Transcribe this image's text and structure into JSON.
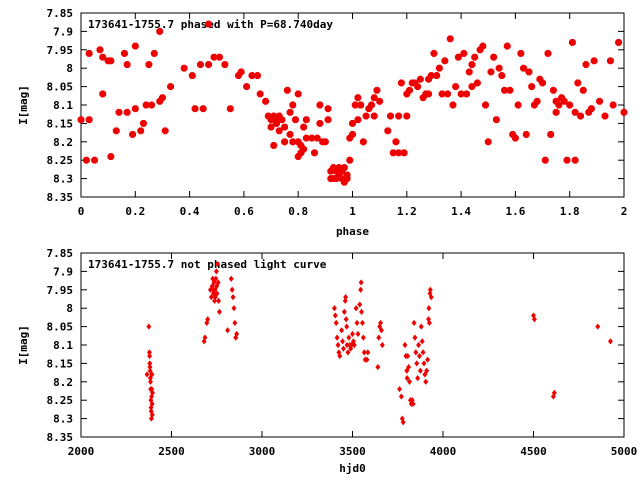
{
  "chart_data": [
    {
      "type": "scatter",
      "title": "173641-1755.7 phased with P=68.740day",
      "xlabel": "phase",
      "ylabel": "I[mag]",
      "xlim": [
        0,
        2
      ],
      "ylim": [
        8.35,
        7.85
      ],
      "y_inverted": true,
      "xticks": [
        "0",
        "0.2",
        "0.4",
        "0.6",
        "0.8",
        "1",
        "1.2",
        "1.4",
        "1.6",
        "1.8",
        "2"
      ],
      "yticks": [
        "7.85",
        "7.9",
        "7.95",
        "8",
        "8.05",
        "8.1",
        "8.15",
        "8.2",
        "8.25",
        "8.3",
        "8.35"
      ],
      "marker": "star",
      "color": "#ee0000",
      "points": [
        [
          0.0,
          8.14
        ],
        [
          0.02,
          8.25
        ],
        [
          0.03,
          8.14
        ],
        [
          0.03,
          7.96
        ],
        [
          0.05,
          8.25
        ],
        [
          0.07,
          7.95
        ],
        [
          0.08,
          8.07
        ],
        [
          0.08,
          7.97
        ],
        [
          0.1,
          7.98
        ],
        [
          0.11,
          8.24
        ],
        [
          0.11,
          7.98
        ],
        [
          0.13,
          8.17
        ],
        [
          0.14,
          8.12
        ],
        [
          0.16,
          7.96
        ],
        [
          0.17,
          8.12
        ],
        [
          0.17,
          7.99
        ],
        [
          0.19,
          8.18
        ],
        [
          0.2,
          8.11
        ],
        [
          0.2,
          7.94
        ],
        [
          0.22,
          8.17
        ],
        [
          0.23,
          8.15
        ],
        [
          0.24,
          8.1
        ],
        [
          0.25,
          7.99
        ],
        [
          0.26,
          8.1
        ],
        [
          0.27,
          7.96
        ],
        [
          0.29,
          8.09
        ],
        [
          0.29,
          7.9
        ],
        [
          0.3,
          8.08
        ],
        [
          0.31,
          8.17
        ],
        [
          0.33,
          8.05
        ],
        [
          0.38,
          8.0
        ],
        [
          0.41,
          8.02
        ],
        [
          0.42,
          8.11
        ],
        [
          0.44,
          7.99
        ],
        [
          0.45,
          8.11
        ],
        [
          0.47,
          7.88
        ],
        [
          0.47,
          7.99
        ],
        [
          0.49,
          7.97
        ],
        [
          0.51,
          7.97
        ],
        [
          0.53,
          7.99
        ],
        [
          0.55,
          8.11
        ],
        [
          0.58,
          8.02
        ],
        [
          0.59,
          8.01
        ],
        [
          0.61,
          8.05
        ],
        [
          0.63,
          8.02
        ],
        [
          0.65,
          8.02
        ],
        [
          0.66,
          8.07
        ],
        [
          0.68,
          8.09
        ],
        [
          0.69,
          8.13
        ],
        [
          0.7,
          8.14
        ],
        [
          0.7,
          8.16
        ],
        [
          0.71,
          8.13
        ],
        [
          0.71,
          8.21
        ],
        [
          0.72,
          8.14
        ],
        [
          0.72,
          8.15
        ],
        [
          0.73,
          8.13
        ],
        [
          0.73,
          8.17
        ],
        [
          0.74,
          8.14
        ],
        [
          0.75,
          8.2
        ],
        [
          0.75,
          8.16
        ],
        [
          0.76,
          8.06
        ],
        [
          0.77,
          8.12
        ],
        [
          0.77,
          8.18
        ],
        [
          0.78,
          8.1
        ],
        [
          0.78,
          8.2
        ],
        [
          0.79,
          8.14
        ],
        [
          0.8,
          8.2
        ],
        [
          0.8,
          8.24
        ],
        [
          0.8,
          8.07
        ],
        [
          0.81,
          8.21
        ],
        [
          0.81,
          8.23
        ],
        [
          0.82,
          8.16
        ],
        [
          0.82,
          8.22
        ],
        [
          0.83,
          8.19
        ],
        [
          0.83,
          8.14
        ],
        [
          0.85,
          8.19
        ],
        [
          0.86,
          8.23
        ],
        [
          0.87,
          8.19
        ],
        [
          0.88,
          8.15
        ],
        [
          0.88,
          8.1
        ],
        [
          0.89,
          8.2
        ],
        [
          0.9,
          8.2
        ],
        [
          0.91,
          8.14
        ],
        [
          0.91,
          8.11
        ],
        [
          0.92,
          8.28
        ],
        [
          0.92,
          8.3
        ],
        [
          0.93,
          8.3
        ],
        [
          0.93,
          8.27
        ],
        [
          0.94,
          8.3
        ],
        [
          0.94,
          8.28
        ],
        [
          0.95,
          8.29
        ],
        [
          0.95,
          8.27
        ],
        [
          0.96,
          8.3
        ],
        [
          0.96,
          8.28
        ],
        [
          0.97,
          8.27
        ],
        [
          0.97,
          8.31
        ],
        [
          0.98,
          8.29
        ],
        [
          0.98,
          8.3
        ],
        [
          0.99,
          8.25
        ],
        [
          0.99,
          8.19
        ],
        [
          1.0,
          8.18
        ],
        [
          1.0,
          8.15
        ],
        [
          1.01,
          8.1
        ],
        [
          1.02,
          8.14
        ],
        [
          1.02,
          8.08
        ],
        [
          1.03,
          8.1
        ],
        [
          1.03,
          8.1
        ],
        [
          1.04,
          8.2
        ],
        [
          1.05,
          8.13
        ],
        [
          1.06,
          8.11
        ],
        [
          1.07,
          8.1
        ],
        [
          1.08,
          8.08
        ],
        [
          1.08,
          8.13
        ],
        [
          1.09,
          8.06
        ],
        [
          1.1,
          8.09
        ],
        [
          1.13,
          8.17
        ],
        [
          1.14,
          8.13
        ],
        [
          1.15,
          8.23
        ],
        [
          1.16,
          8.2
        ],
        [
          1.17,
          8.23
        ],
        [
          1.17,
          8.13
        ],
        [
          1.18,
          8.04
        ],
        [
          1.19,
          8.23
        ],
        [
          1.2,
          8.07
        ],
        [
          1.2,
          8.13
        ],
        [
          1.21,
          8.06
        ],
        [
          1.22,
          8.04
        ],
        [
          1.23,
          8.04
        ],
        [
          1.24,
          8.05
        ],
        [
          1.25,
          8.03
        ],
        [
          1.26,
          8.08
        ],
        [
          1.27,
          8.07
        ],
        [
          1.28,
          8.07
        ],
        [
          1.28,
          8.03
        ],
        [
          1.29,
          8.02
        ],
        [
          1.3,
          7.96
        ],
        [
          1.31,
          8.02
        ],
        [
          1.32,
          8.0
        ],
        [
          1.33,
          8.07
        ],
        [
          1.34,
          7.98
        ],
        [
          1.35,
          8.07
        ],
        [
          1.36,
          7.92
        ],
        [
          1.37,
          8.1
        ],
        [
          1.38,
          8.05
        ],
        [
          1.39,
          7.97
        ],
        [
          1.4,
          8.07
        ],
        [
          1.41,
          7.96
        ],
        [
          1.42,
          8.07
        ],
        [
          1.43,
          8.01
        ],
        [
          1.44,
          8.05
        ],
        [
          1.44,
          7.99
        ],
        [
          1.45,
          7.97
        ],
        [
          1.46,
          8.04
        ],
        [
          1.47,
          7.95
        ],
        [
          1.48,
          7.94
        ],
        [
          1.49,
          8.1
        ],
        [
          1.5,
          8.2
        ],
        [
          1.51,
          8.01
        ],
        [
          1.52,
          7.97
        ],
        [
          1.53,
          8.14
        ],
        [
          1.54,
          8.0
        ],
        [
          1.55,
          8.02
        ],
        [
          1.56,
          8.06
        ],
        [
          1.57,
          7.94
        ],
        [
          1.58,
          8.06
        ],
        [
          1.59,
          8.18
        ],
        [
          1.6,
          8.19
        ],
        [
          1.61,
          8.1
        ],
        [
          1.62,
          7.96
        ],
        [
          1.63,
          8.0
        ],
        [
          1.64,
          8.18
        ],
        [
          1.65,
          8.01
        ],
        [
          1.66,
          8.05
        ],
        [
          1.67,
          8.1
        ],
        [
          1.68,
          8.09
        ],
        [
          1.69,
          8.03
        ],
        [
          1.7,
          8.04
        ],
        [
          1.71,
          8.25
        ],
        [
          1.72,
          7.96
        ],
        [
          1.73,
          8.18
        ],
        [
          1.74,
          8.06
        ],
        [
          1.75,
          8.09
        ],
        [
          1.75,
          8.12
        ],
        [
          1.76,
          8.1
        ],
        [
          1.77,
          8.08
        ],
        [
          1.78,
          8.09
        ],
        [
          1.79,
          8.25
        ],
        [
          1.8,
          8.1
        ],
        [
          1.81,
          7.93
        ],
        [
          1.82,
          8.25
        ],
        [
          1.82,
          8.12
        ],
        [
          1.83,
          8.04
        ],
        [
          1.84,
          8.13
        ],
        [
          1.85,
          8.06
        ],
        [
          1.86,
          7.99
        ],
        [
          1.87,
          8.12
        ],
        [
          1.88,
          8.11
        ],
        [
          1.89,
          7.98
        ],
        [
          1.91,
          8.09
        ],
        [
          1.93,
          8.13
        ],
        [
          1.95,
          7.98
        ],
        [
          1.96,
          8.1
        ],
        [
          1.98,
          7.93
        ],
        [
          2.0,
          8.12
        ]
      ]
    },
    {
      "type": "scatter",
      "title": "173641-1755.7 not phased light curve",
      "xlabel": "hjd0",
      "ylabel": "I[mag]",
      "xlim": [
        2000,
        5000
      ],
      "ylim": [
        8.35,
        7.85
      ],
      "y_inverted": true,
      "xticks": [
        "2000",
        "2500",
        "3000",
        "3500",
        "4000",
        "4500",
        "5000"
      ],
      "yticks": [
        "7.85",
        "7.9",
        "7.95",
        "8",
        "8.05",
        "8.1",
        "8.15",
        "8.2",
        "8.25",
        "8.3",
        "8.35"
      ],
      "marker": "diamond",
      "color": "#ee0000",
      "points": [
        [
          2365,
          8.18
        ],
        [
          2375,
          8.05
        ],
        [
          2378,
          8.12
        ],
        [
          2379,
          8.13
        ],
        [
          2380,
          8.15
        ],
        [
          2381,
          8.16
        ],
        [
          2382,
          8.17
        ],
        [
          2383,
          8.19
        ],
        [
          2384,
          8.2
        ],
        [
          2385,
          8.22
        ],
        [
          2386,
          8.25
        ],
        [
          2387,
          8.27
        ],
        [
          2388,
          8.28
        ],
        [
          2389,
          8.3
        ],
        [
          2390,
          8.24
        ],
        [
          2391,
          8.22
        ],
        [
          2392,
          8.18
        ],
        [
          2393,
          8.26
        ],
        [
          2394,
          8.29
        ],
        [
          2395,
          8.23
        ],
        [
          2680,
          8.09
        ],
        [
          2685,
          8.08
        ],
        [
          2695,
          8.04
        ],
        [
          2700,
          8.03
        ],
        [
          2715,
          7.95
        ],
        [
          2720,
          7.97
        ],
        [
          2725,
          7.94
        ],
        [
          2728,
          7.92
        ],
        [
          2730,
          7.95
        ],
        [
          2732,
          7.96
        ],
        [
          2735,
          7.93
        ],
        [
          2738,
          7.98
        ],
        [
          2740,
          7.95
        ],
        [
          2742,
          7.97
        ],
        [
          2745,
          7.92
        ],
        [
          2748,
          7.9
        ],
        [
          2750,
          7.94
        ],
        [
          2752,
          7.96
        ],
        [
          2755,
          7.88
        ],
        [
          2758,
          7.93
        ],
        [
          2760,
          7.98
        ],
        [
          2765,
          8.01
        ],
        [
          2810,
          8.06
        ],
        [
          2830,
          7.92
        ],
        [
          2835,
          7.95
        ],
        [
          2840,
          7.97
        ],
        [
          2845,
          8.0
        ],
        [
          2850,
          8.04
        ],
        [
          2855,
          8.08
        ],
        [
          2860,
          8.07
        ],
        [
          3400,
          8.0
        ],
        [
          3405,
          8.02
        ],
        [
          3410,
          8.04
        ],
        [
          3415,
          8.08
        ],
        [
          3420,
          8.1
        ],
        [
          3425,
          8.12
        ],
        [
          3430,
          8.13
        ],
        [
          3440,
          8.06
        ],
        [
          3445,
          8.09
        ],
        [
          3450,
          8.11
        ],
        [
          3455,
          8.01
        ],
        [
          3460,
          7.98
        ],
        [
          3462,
          7.97
        ],
        [
          3465,
          8.03
        ],
        [
          3468,
          8.05
        ],
        [
          3470,
          8.1
        ],
        [
          3475,
          8.12
        ],
        [
          3480,
          8.08
        ],
        [
          3485,
          8.1
        ],
        [
          3490,
          8.11
        ],
        [
          3495,
          8.1
        ],
        [
          3500,
          8.07
        ],
        [
          3505,
          8.09
        ],
        [
          3510,
          8.1
        ],
        [
          3520,
          8.0
        ],
        [
          3525,
          8.04
        ],
        [
          3530,
          8.07
        ],
        [
          3540,
          7.99
        ],
        [
          3545,
          7.95
        ],
        [
          3548,
          7.93
        ],
        [
          3550,
          8.01
        ],
        [
          3555,
          8.04
        ],
        [
          3560,
          8.08
        ],
        [
          3565,
          8.12
        ],
        [
          3570,
          8.14
        ],
        [
          3580,
          8.14
        ],
        [
          3585,
          8.12
        ],
        [
          3640,
          8.16
        ],
        [
          3645,
          8.08
        ],
        [
          3650,
          8.05
        ],
        [
          3655,
          8.04
        ],
        [
          3660,
          8.06
        ],
        [
          3665,
          8.1
        ],
        [
          3760,
          8.22
        ],
        [
          3770,
          8.24
        ],
        [
          3775,
          8.3
        ],
        [
          3780,
          8.31
        ],
        [
          3790,
          8.1
        ],
        [
          3795,
          8.13
        ],
        [
          3800,
          8.17
        ],
        [
          3802,
          8.19
        ],
        [
          3805,
          8.13
        ],
        [
          3810,
          8.16
        ],
        [
          3815,
          8.2
        ],
        [
          3820,
          8.25
        ],
        [
          3825,
          8.26
        ],
        [
          3830,
          8.25
        ],
        [
          3835,
          8.26
        ],
        [
          3840,
          8.04
        ],
        [
          3845,
          8.08
        ],
        [
          3850,
          8.12
        ],
        [
          3855,
          8.15
        ],
        [
          3860,
          8.19
        ],
        [
          3865,
          8.1
        ],
        [
          3870,
          8.13
        ],
        [
          3875,
          8.17
        ],
        [
          3880,
          8.05
        ],
        [
          3885,
          8.09
        ],
        [
          3890,
          8.12
        ],
        [
          3895,
          8.15
        ],
        [
          3900,
          8.18
        ],
        [
          3905,
          8.2
        ],
        [
          3910,
          8.17
        ],
        [
          3915,
          8.14
        ],
        [
          3920,
          8.03
        ],
        [
          3922,
          8.0
        ],
        [
          3925,
          8.04
        ],
        [
          3928,
          7.96
        ],
        [
          3930,
          7.95
        ],
        [
          3935,
          7.97
        ],
        [
          4500,
          8.02
        ],
        [
          4505,
          8.03
        ],
        [
          4610,
          8.24
        ],
        [
          4615,
          8.23
        ],
        [
          4855,
          8.05
        ],
        [
          4925,
          8.09
        ]
      ]
    }
  ]
}
